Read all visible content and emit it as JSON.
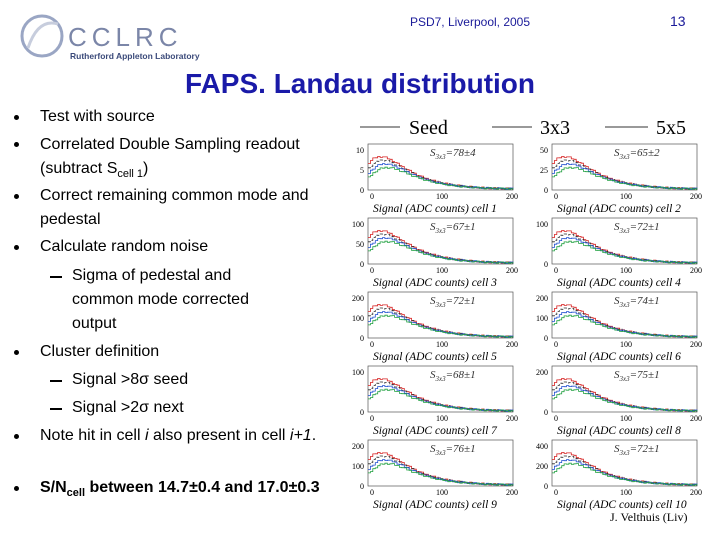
{
  "header": {
    "logo_main": "CCLRC",
    "logo_sub": "Rutherford Appleton Laboratory",
    "conference": "PSD7, Liverpool, 2005",
    "page": "13"
  },
  "title": "FAPS. Landau distribution",
  "bullets": [
    {
      "parts": [
        "Test with source"
      ]
    },
    {
      "parts": [
        "Correlated Double Sampling readout (subtract S",
        "cell 1",
        ")"
      ]
    },
    {
      "parts": [
        "Correct remaining common mode and pedestal"
      ]
    },
    {
      "parts": [
        "Calculate random noise"
      ]
    },
    {
      "parts": [
        "Sigma of pedestal and common mode corrected output"
      ]
    },
    {
      "parts": [
        "Cluster definition"
      ]
    },
    {
      "parts": [
        "Signal >8",
        "σ",
        " seed"
      ]
    },
    {
      "parts": [
        "Signal >2",
        "σ",
        " next"
      ]
    },
    {
      "parts": [
        "Note hit in cell ",
        "i",
        " also present in cell ",
        "i+1",
        "."
      ]
    },
    {
      "parts": [
        "S/N",
        "cell",
        " between 14.7±0.4 and 17.0±0.3"
      ]
    }
  ],
  "legend": [
    "Seed",
    "3x3",
    "5x5"
  ],
  "xticks": [
    "0",
    "100",
    "200"
  ],
  "panels": [
    {
      "stat": {
        "symbol": "S",
        "sub": "3x3",
        "rest": "=78±4"
      },
      "caption": "Signal (ADC counts) cell 1",
      "yticks": [
        "10",
        "5",
        "0"
      ]
    },
    {
      "stat": {
        "symbol": "S",
        "sub": "3x3",
        "rest": "=65±2"
      },
      "caption": "Signal (ADC counts) cell 2",
      "yticks": [
        "50",
        "25",
        "0"
      ]
    },
    {
      "stat": {
        "symbol": "S",
        "sub": "3x3",
        "rest": "=67±1"
      },
      "caption": "Signal (ADC counts) cell 3",
      "yticks": [
        "100",
        "50",
        "0"
      ]
    },
    {
      "stat": {
        "symbol": "S",
        "sub": "3x3",
        "rest": "=72±1"
      },
      "caption": "Signal (ADC counts) cell 4",
      "yticks": [
        "100",
        "0"
      ]
    },
    {
      "stat": {
        "symbol": "S",
        "sub": "3x3",
        "rest": "=72±1"
      },
      "caption": "Signal (ADC counts) cell 5",
      "yticks": [
        "200",
        "100",
        "0"
      ]
    },
    {
      "stat": {
        "symbol": "S",
        "sub": "3x3",
        "rest": "=74±1"
      },
      "caption": "Signal (ADC counts) cell 6",
      "yticks": [
        "200",
        "100",
        "0"
      ]
    },
    {
      "stat": {
        "symbol": "S",
        "sub": "3x3",
        "rest": "=68±1"
      },
      "caption": "Signal (ADC counts) cell 7",
      "yticks": [
        "100",
        "0"
      ]
    },
    {
      "stat": {
        "symbol": "S",
        "sub": "3x3",
        "rest": "=75±1"
      },
      "caption": "Signal (ADC counts) cell 8",
      "yticks": [
        "200",
        "0"
      ]
    },
    {
      "stat": {
        "symbol": "S",
        "sub": "3x3",
        "rest": "=76±1"
      },
      "caption": "Signal (ADC counts) cell 9",
      "yticks": [
        "200",
        "100",
        "0"
      ]
    },
    {
      "stat": {
        "symbol": "S",
        "sub": "3x3",
        "rest": "=72±1"
      },
      "caption": "Signal (ADC counts) cell 10",
      "yticks": [
        "400",
        "200",
        "0"
      ]
    }
  ],
  "credit": "J. Velthuis (Liv)"
}
